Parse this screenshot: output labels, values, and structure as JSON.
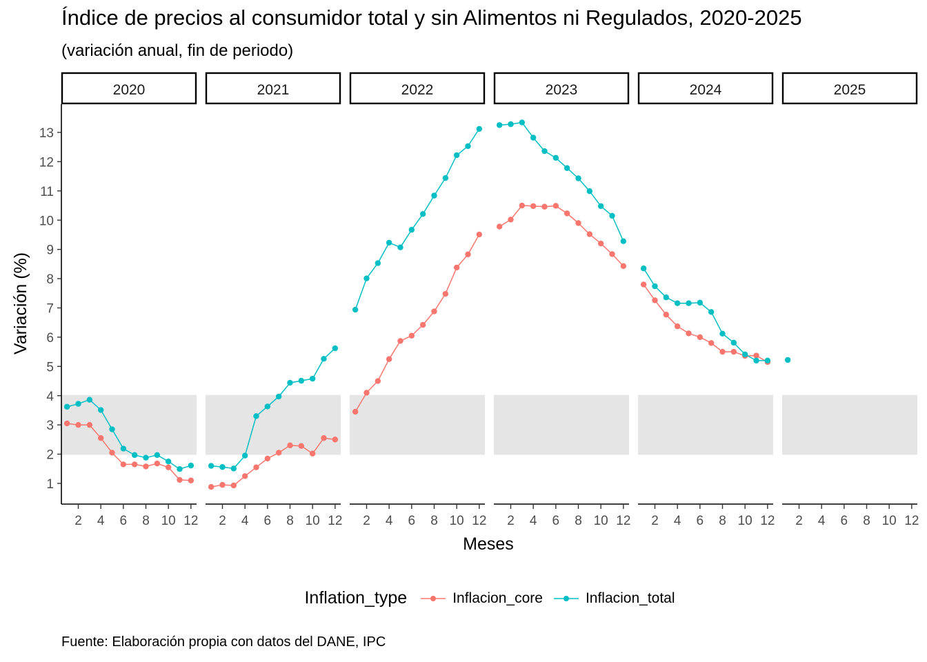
{
  "title": "Índice de precios al consumidor total y sin Alimentos ni Regulados, 2020-2025",
  "subtitle": "(variación anual, fin de periodo)",
  "caption": "Fuente: Elaboración propia con datos del DANE, IPC",
  "legend": {
    "title": "Inflation_type",
    "items": [
      {
        "label": "Inflacion_core",
        "color": "#F8766D"
      },
      {
        "label": "Inflacion_total",
        "color": "#00BFC4"
      }
    ]
  },
  "chart_data": {
    "type": "line",
    "facet_by": "year",
    "facets": [
      "2020",
      "2021",
      "2022",
      "2023",
      "2024",
      "2025"
    ],
    "xlabel": "Meses",
    "ylabel": "Variación (%)",
    "x_ticks": [
      2,
      4,
      6,
      8,
      10,
      12
    ],
    "y_ticks": [
      1,
      2,
      3,
      4,
      5,
      6,
      7,
      8,
      9,
      10,
      11,
      12,
      13
    ],
    "xlim": [
      0.5,
      12.5
    ],
    "ylim": [
      0.3,
      14
    ],
    "target_band": {
      "ymin": 2,
      "ymax": 4,
      "color": "#E5E5E5"
    },
    "grid": false,
    "legend_position": "bottom",
    "series": [
      {
        "name": "Inflacion_core",
        "color": "#F8766D",
        "values": {
          "2020": [
            3.05,
            3.0,
            3.0,
            2.55,
            2.05,
            1.65,
            1.65,
            1.58,
            1.68,
            1.55,
            1.12,
            1.1
          ],
          "2021": [
            0.88,
            0.95,
            0.93,
            1.25,
            1.55,
            1.85,
            2.05,
            2.3,
            2.28,
            2.02,
            2.55,
            2.5
          ],
          "2022": [
            3.45,
            4.1,
            4.5,
            5.25,
            5.87,
            6.05,
            6.42,
            6.88,
            7.48,
            8.38,
            8.83,
            9.51
          ],
          "2023": [
            9.78,
            10.02,
            10.5,
            10.48,
            10.46,
            10.49,
            10.23,
            9.9,
            9.52,
            9.2,
            8.84,
            8.43
          ],
          "2024": [
            7.8,
            7.26,
            6.77,
            6.37,
            6.13,
            6.0,
            5.8,
            5.5,
            5.5,
            5.36,
            5.37,
            5.15
          ],
          "2025": []
        }
      },
      {
        "name": "Inflacion_total",
        "color": "#00BFC4",
        "values": {
          "2020": [
            3.62,
            3.72,
            3.86,
            3.51,
            2.85,
            2.19,
            1.97,
            1.88,
            1.97,
            1.75,
            1.49,
            1.61
          ],
          "2021": [
            1.6,
            1.56,
            1.51,
            1.95,
            3.3,
            3.63,
            3.97,
            4.44,
            4.51,
            4.58,
            5.26,
            5.62
          ],
          "2022": [
            6.94,
            8.01,
            8.53,
            9.23,
            9.07,
            9.67,
            10.21,
            10.84,
            11.44,
            12.22,
            12.53,
            13.12
          ],
          "2023": [
            13.25,
            13.28,
            13.34,
            12.82,
            12.36,
            12.13,
            11.78,
            11.43,
            10.99,
            10.48,
            10.15,
            9.28
          ],
          "2024": [
            8.35,
            7.74,
            7.36,
            7.16,
            7.16,
            7.18,
            6.86,
            6.12,
            5.81,
            5.41,
            5.2,
            5.2
          ],
          "2025": [
            5.22
          ]
        }
      }
    ]
  }
}
